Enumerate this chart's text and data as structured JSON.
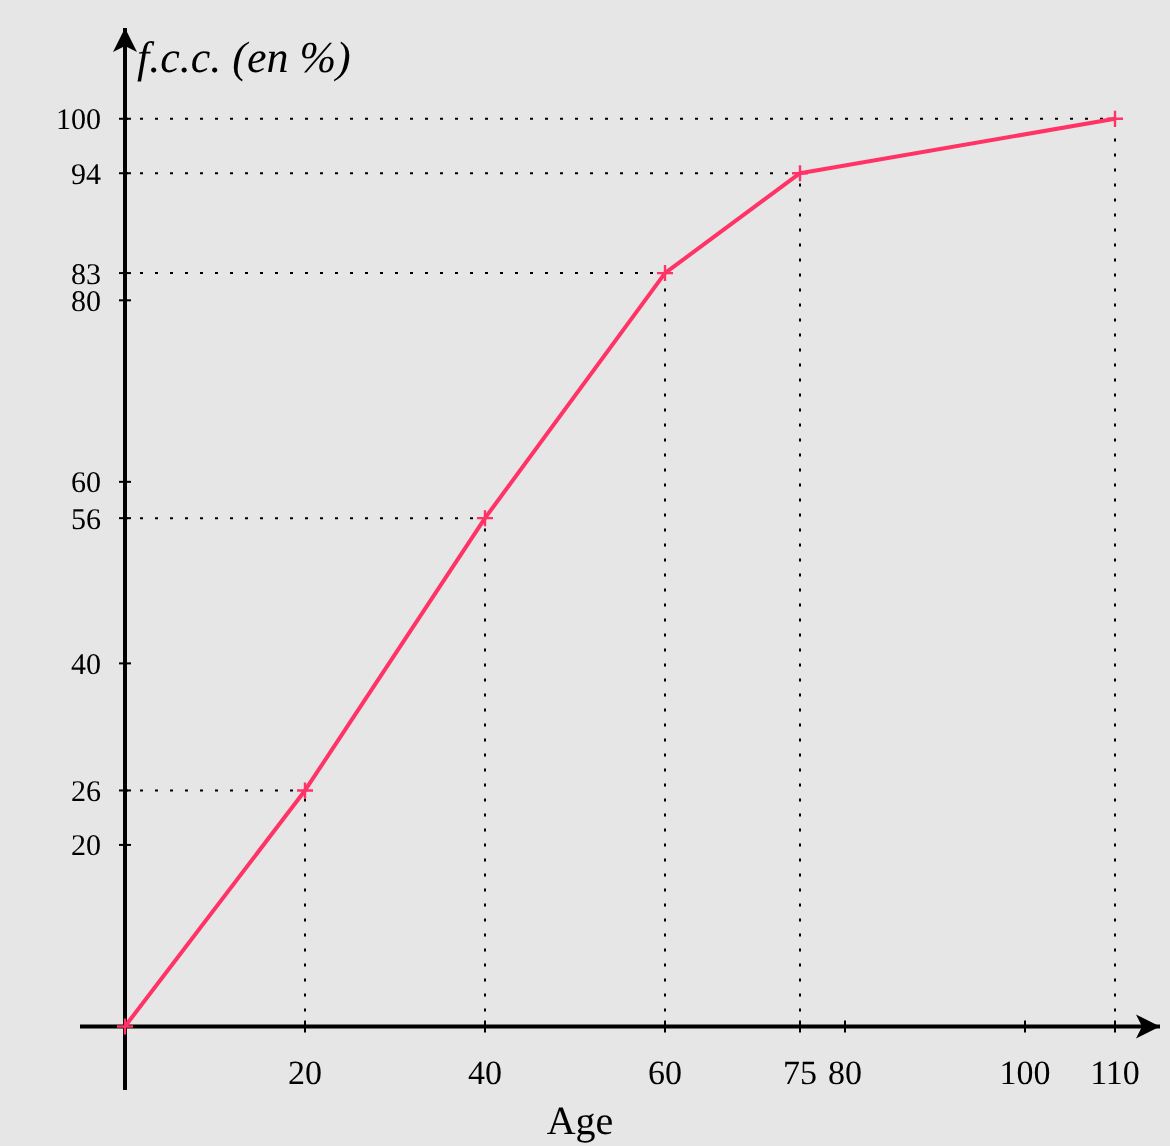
{
  "chart_data": {
    "type": "line",
    "ylabel": "f.c.c. (en %)",
    "xlabel": "Age",
    "x": [
      0,
      20,
      40,
      60,
      75,
      110
    ],
    "series": [
      {
        "color": "#ff3366",
        "values": [
          0,
          26,
          56,
          83,
          94,
          100
        ]
      }
    ],
    "xlim": [
      -5,
      115
    ],
    "ylim": [
      -7,
      110
    ],
    "xticks": [
      20,
      40,
      60,
      75,
      80,
      100,
      110
    ],
    "yticks": [
      20,
      26,
      40,
      56,
      60,
      80,
      83,
      94,
      100
    ],
    "ref_lines": [
      {
        "axis": "y",
        "value": 26,
        "line_style": "dotted",
        "color": "#000000"
      },
      {
        "axis": "y",
        "value": 56,
        "line_style": "dotted",
        "color": "#000000"
      },
      {
        "axis": "y",
        "value": 83,
        "line_style": "dotted",
        "color": "#000000"
      },
      {
        "axis": "y",
        "value": 94,
        "line_style": "dotted",
        "color": "#000000"
      },
      {
        "axis": "y",
        "value": 100,
        "line_style": "dotted",
        "color": "#000000"
      },
      {
        "axis": "x",
        "value": 20,
        "line_style": "dotted",
        "color": "#000000"
      },
      {
        "axis": "x",
        "value": 40,
        "line_style": "dotted",
        "color": "#000000"
      },
      {
        "axis": "x",
        "value": 60,
        "line_style": "dotted",
        "color": "#000000"
      },
      {
        "axis": "x",
        "value": 75,
        "line_style": "dotted",
        "color": "#000000"
      },
      {
        "axis": "x",
        "value": 110,
        "line_style": "dotted",
        "color": "#000000"
      }
    ],
    "marker": "cross",
    "line_style": "solid"
  }
}
